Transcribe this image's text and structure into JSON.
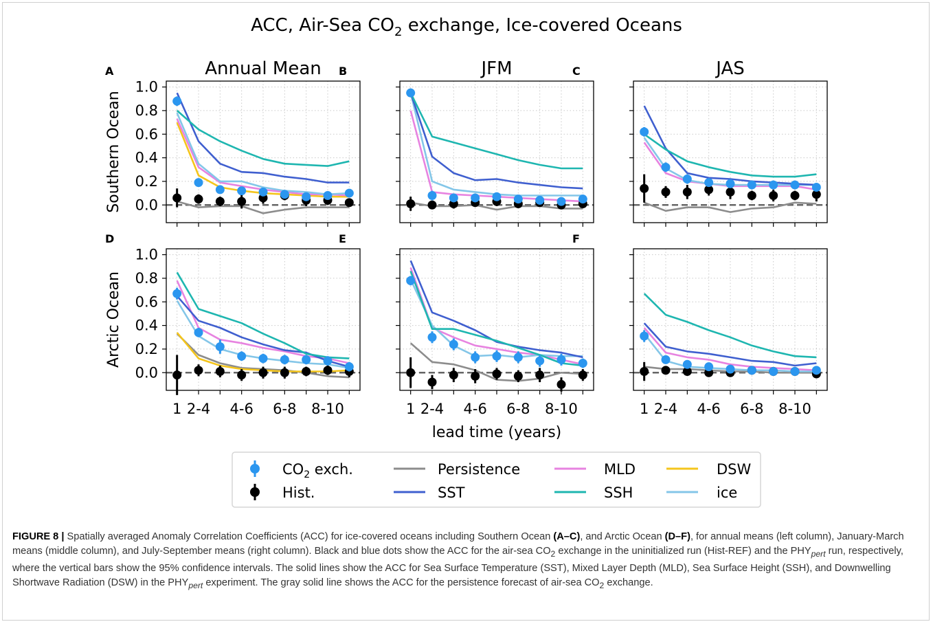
{
  "figure": {
    "title_main": "ACC, Air-Sea CO",
    "title_sub": "2",
    "title_rest": " exchange, Ice-covered Oceans"
  },
  "chart_data": {
    "type": "line",
    "xlabel": "lead time (years)",
    "x_ticklabels": [
      "1",
      "2-4",
      "4-6",
      "6-8",
      "8-10"
    ],
    "x_tick_positions": [
      1,
      2,
      4,
      6,
      8
    ],
    "x_grid": [
      1,
      2,
      3,
      4,
      5,
      6,
      7,
      8,
      9
    ],
    "xlim": [
      0.5,
      9.5
    ],
    "ylim": [
      -0.15,
      1.05
    ],
    "y_ticks": [
      0.0,
      0.2,
      0.4,
      0.6,
      0.8,
      1.0
    ],
    "y_ticklabels": [
      "0.0",
      "0.2",
      "0.4",
      "0.6",
      "0.8",
      "1.0"
    ],
    "row_labels": [
      "Southern Ocean",
      "Arctic Ocean"
    ],
    "column_titles": [
      "Annual Mean",
      "JFM",
      "JAS"
    ],
    "grid": true,
    "reference_line": 0,
    "colors": {
      "Persistence": "#8c8c8c",
      "SST": "#3f5fcf",
      "MLD": "#e783e0",
      "SSH": "#1eb6b0",
      "DSW": "#f4c51c",
      "ice": "#84c6e8",
      "CO2": "#2b96ef",
      "Hist": "#000000"
    },
    "legend": {
      "placement": "bottom-center",
      "co2_label": "CO",
      "co2_sub": "2",
      "co2_rest": " exch.",
      "hist_label": "Hist.",
      "persistence_label": "Persistence",
      "sst_label": "SST",
      "mld_label": "MLD",
      "ssh_label": "SSH",
      "dsw_label": "DSW",
      "ice_label": "ice"
    },
    "panels": [
      {
        "letter": "A",
        "lines": {
          "Persistence": [
            0.03,
            -0.02,
            -0.01,
            -0.01,
            -0.07,
            -0.04,
            -0.02,
            -0.02,
            -0.02
          ],
          "SST": [
            0.95,
            0.54,
            0.35,
            0.28,
            0.27,
            0.24,
            0.22,
            0.19,
            0.19
          ],
          "MLD": [
            0.73,
            0.32,
            0.19,
            0.16,
            0.13,
            0.11,
            0.09,
            0.09,
            0.08
          ],
          "SSH": [
            0.8,
            0.64,
            0.54,
            0.46,
            0.39,
            0.35,
            0.34,
            0.33,
            0.37
          ],
          "DSW": [
            0.7,
            0.25,
            0.15,
            0.12,
            0.1,
            0.09,
            0.08,
            0.07,
            0.07
          ],
          "ice": [
            0.78,
            0.35,
            0.2,
            0.2,
            0.15,
            0.12,
            0.11,
            0.09,
            0.1
          ]
        },
        "co2": {
          "y": [
            0.88,
            0.19,
            0.13,
            0.12,
            0.11,
            0.09,
            0.07,
            0.08,
            0.1
          ],
          "err": [
            0.04,
            0.03,
            0.03,
            0.03,
            0.03,
            0.03,
            0.03,
            0.03,
            0.03
          ]
        },
        "hist": {
          "y": [
            0.06,
            0.05,
            0.03,
            0.03,
            0.06,
            0.08,
            0.04,
            0.04,
            0.02
          ],
          "err": [
            0.08,
            0.04,
            0.04,
            0.06,
            0.05,
            0.04,
            0.05,
            0.04,
            0.03
          ]
        }
      },
      {
        "letter": "B",
        "lines": {
          "Persistence": [
            0.02,
            -0.01,
            -0.01,
            0.0,
            -0.04,
            -0.01,
            -0.01,
            -0.03,
            -0.03
          ],
          "SST": [
            0.95,
            0.41,
            0.27,
            0.21,
            0.22,
            0.19,
            0.17,
            0.15,
            0.14
          ],
          "MLD": [
            0.8,
            0.11,
            0.09,
            0.08,
            0.07,
            0.06,
            0.05,
            0.04,
            0.03
          ],
          "SSH": [
            0.95,
            0.58,
            0.53,
            0.48,
            0.43,
            0.38,
            0.34,
            0.31,
            0.31
          ],
          "ice": [
            0.95,
            0.2,
            0.13,
            0.11,
            0.09,
            0.08,
            0.08,
            0.08,
            0.08
          ]
        },
        "co2": {
          "y": [
            0.95,
            0.08,
            0.06,
            0.06,
            0.07,
            0.05,
            0.04,
            0.03,
            0.05
          ],
          "err": [
            0.03,
            0.04,
            0.03,
            0.03,
            0.03,
            0.03,
            0.03,
            0.03,
            0.03
          ]
        },
        "hist": {
          "y": [
            0.01,
            0.0,
            0.01,
            0.02,
            0.03,
            0.01,
            0.02,
            0.0,
            0.01
          ],
          "err": [
            0.06,
            0.03,
            0.04,
            0.03,
            0.04,
            0.03,
            0.03,
            0.03,
            0.03
          ]
        }
      },
      {
        "letter": "C",
        "lines": {
          "Persistence": [
            0.02,
            -0.05,
            -0.02,
            -0.02,
            -0.06,
            -0.03,
            -0.02,
            0.02,
            0.01
          ],
          "SST": [
            0.84,
            0.48,
            0.27,
            0.23,
            0.22,
            0.2,
            0.19,
            0.18,
            0.17
          ],
          "MLD": [
            0.53,
            0.27,
            0.2,
            0.18,
            0.16,
            0.16,
            0.16,
            0.16,
            0.13
          ],
          "SSH": [
            0.6,
            0.47,
            0.37,
            0.32,
            0.28,
            0.25,
            0.24,
            0.24,
            0.26
          ],
          "ice": [
            0.57,
            0.31,
            0.21,
            0.18,
            0.17,
            0.17,
            0.17,
            0.17,
            0.17
          ]
        },
        "co2": {
          "y": [
            0.62,
            0.32,
            0.22,
            0.19,
            0.18,
            0.17,
            0.17,
            0.17,
            0.15
          ],
          "err": [
            0.04,
            0.04,
            0.04,
            0.03,
            0.03,
            0.03,
            0.03,
            0.03,
            0.03
          ]
        },
        "hist": {
          "y": [
            0.14,
            0.11,
            0.11,
            0.13,
            0.11,
            0.08,
            0.08,
            0.08,
            0.09
          ],
          "err": [
            0.12,
            0.05,
            0.06,
            0.05,
            0.06,
            0.04,
            0.05,
            0.04,
            0.06
          ]
        }
      },
      {
        "letter": "D",
        "lines": {
          "Persistence": [
            0.33,
            0.15,
            0.08,
            0.04,
            0.03,
            0.02,
            0.0,
            -0.03,
            -0.04
          ],
          "SST": [
            0.65,
            0.44,
            0.38,
            0.3,
            0.24,
            0.19,
            0.17,
            0.1,
            0.05
          ],
          "MLD": [
            0.78,
            0.38,
            0.28,
            0.25,
            0.21,
            0.18,
            0.14,
            0.12,
            0.08
          ],
          "SSH": [
            0.85,
            0.54,
            0.48,
            0.42,
            0.33,
            0.25,
            0.16,
            0.13,
            0.12
          ],
          "DSW": [
            0.34,
            0.12,
            0.06,
            0.03,
            0.02,
            0.01,
            0.01,
            0.01,
            0.02
          ],
          "ice": [
            0.61,
            0.31,
            0.2,
            0.15,
            0.12,
            0.1,
            0.08,
            0.07,
            0.04
          ]
        },
        "co2": {
          "y": [
            0.67,
            0.34,
            0.22,
            0.14,
            0.12,
            0.11,
            0.11,
            0.1,
            0.05
          ],
          "err": [
            0.05,
            0.04,
            0.06,
            0.04,
            0.04,
            0.04,
            0.04,
            0.04,
            0.04
          ]
        },
        "hist": {
          "y": [
            -0.02,
            0.02,
            0.01,
            -0.02,
            0.0,
            0.0,
            0.01,
            0.02,
            0.01
          ],
          "err": [
            0.17,
            0.05,
            0.05,
            0.05,
            0.05,
            0.05,
            0.04,
            0.04,
            0.05
          ]
        }
      },
      {
        "letter": "E",
        "lines": {
          "Persistence": [
            0.25,
            0.09,
            0.07,
            0.02,
            -0.06,
            -0.07,
            -0.05,
            0.0,
            -0.01
          ],
          "SST": [
            0.95,
            0.51,
            0.44,
            0.36,
            0.26,
            0.22,
            0.19,
            0.17,
            0.13
          ],
          "MLD": [
            0.89,
            0.38,
            0.3,
            0.23,
            0.2,
            0.17,
            0.15,
            0.11,
            0.07
          ],
          "SSH": [
            0.86,
            0.37,
            0.37,
            0.32,
            0.27,
            0.21,
            0.15,
            0.08,
            0.06
          ],
          "ice": [
            0.79,
            0.4,
            0.23,
            0.14,
            0.15,
            0.13,
            0.15,
            0.14,
            0.14
          ]
        },
        "co2": {
          "y": [
            0.78,
            0.3,
            0.24,
            0.13,
            0.14,
            0.13,
            0.1,
            0.11,
            0.08
          ],
          "err": [
            0.04,
            0.05,
            0.05,
            0.05,
            0.05,
            0.05,
            0.05,
            0.05,
            0.04
          ]
        },
        "hist": {
          "y": [
            0.0,
            -0.08,
            -0.02,
            -0.03,
            -0.01,
            -0.03,
            -0.02,
            -0.1,
            -0.02
          ],
          "err": [
            0.13,
            0.06,
            0.06,
            0.06,
            0.05,
            0.05,
            0.06,
            0.06,
            0.05
          ]
        }
      },
      {
        "letter": "F",
        "lines": {
          "Persistence": [
            0.05,
            0.03,
            0.03,
            0.02,
            0.01,
            0.01,
            0.0,
            0.0,
            0.0
          ],
          "SST": [
            0.42,
            0.22,
            0.18,
            0.16,
            0.13,
            0.1,
            0.09,
            0.06,
            0.08
          ],
          "MLD": [
            0.38,
            0.17,
            0.13,
            0.11,
            0.07,
            0.05,
            0.04,
            0.03,
            0.02
          ],
          "SSH": [
            0.67,
            0.49,
            0.43,
            0.36,
            0.3,
            0.23,
            0.18,
            0.14,
            0.13
          ],
          "ice": [
            0.33,
            0.1,
            0.05,
            0.04,
            0.03,
            0.02,
            0.02,
            0.01,
            0.01
          ]
        },
        "co2": {
          "y": [
            0.31,
            0.11,
            0.07,
            0.05,
            0.03,
            0.02,
            0.01,
            0.01,
            0.02
          ],
          "err": [
            0.05,
            0.03,
            0.03,
            0.03,
            0.03,
            0.03,
            0.03,
            0.03,
            0.03
          ]
        },
        "hist": {
          "y": [
            0.01,
            0.02,
            0.01,
            0.0,
            0.0,
            0.02,
            0.01,
            0.01,
            -0.01
          ],
          "err": [
            0.08,
            0.03,
            0.03,
            0.03,
            0.03,
            0.03,
            0.03,
            0.03,
            0.03
          ]
        }
      }
    ]
  },
  "caption": {
    "figure_label": "FIGURE 8 |",
    "seg1": " Spatially averaged Anomaly Correlation Coefficients (ACC) for ice-covered oceans including Southern Ocean ",
    "bold1": "(A–C)",
    "seg2": ", and Arctic Ocean ",
    "bold2": "(D–F)",
    "seg3": ", for annual means (left column), January-March means (middle column), and July-September means (right column). Black and blue dots show the ACC for the air-sea CO",
    "sub1": "2",
    "seg4": " exchange in the uninitialized run (Hist-REF) and the PHY",
    "sub2": "pert",
    "seg5": " run, respectively, where the vertical bars show the 95% confidence intervals. The solid lines show the ACC for Sea Surface Temperature (SST), Mixed Layer Depth (MLD), Sea Surface Height (SSH), and Downwelling Shortwave Radiation (DSW) in the PHY",
    "sub3": "pert",
    "seg6": " experiment. The gray solid line shows the ACC for the persistence forecast of air-sea CO",
    "sub4": "2",
    "seg7": " exchange."
  }
}
